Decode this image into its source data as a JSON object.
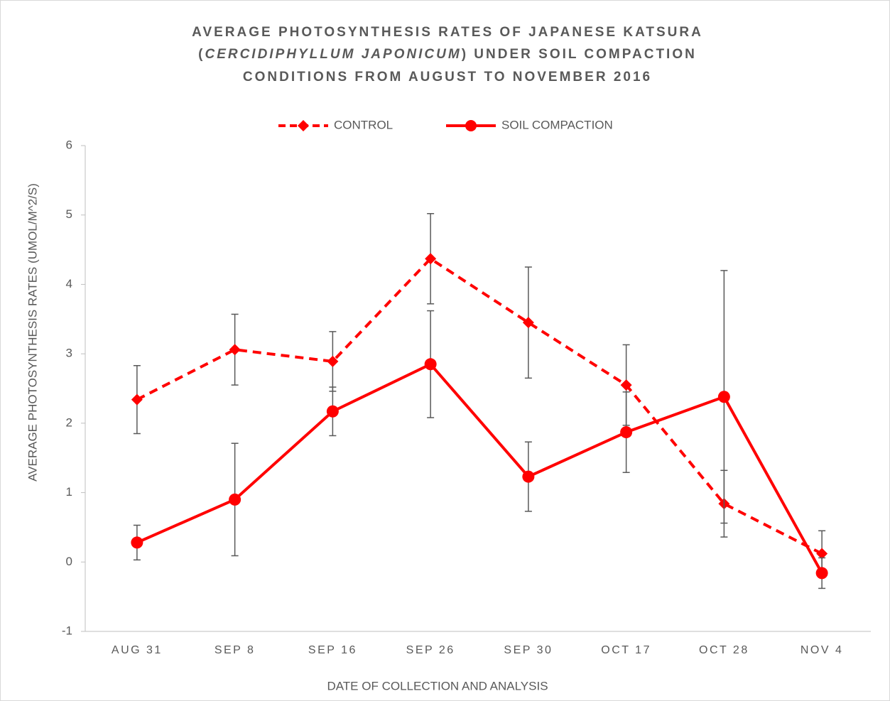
{
  "chart_data": {
    "type": "line",
    "title": [
      "AVERAGE PHOTOSYNTHESIS RATES OF JAPANESE KATSURA",
      "(",
      "CERCIDIPHYLLUM JAPONICUM",
      ") UNDER SOIL COMPACTION",
      "CONDITIONS FROM AUGUST TO NOVEMBER 2016"
    ],
    "x_label": "DATE OF COLLECTION AND ANALYSIS",
    "y_label": "AVERAGE PHOTOSYNTHESIS RATES (UMOL/M^2/S)",
    "categories": [
      "AUG 31",
      "SEP 8",
      "SEP 16",
      "SEP 26",
      "SEP 30",
      "OCT 17",
      "OCT 28",
      "NOV 4"
    ],
    "series": [
      {
        "name": "CONTROL",
        "color": "#ff0000",
        "dashed": true,
        "marker": "diamond",
        "values": [
          2.34,
          3.06,
          2.89,
          4.37,
          3.45,
          2.55,
          0.84,
          0.12
        ],
        "errors": [
          0.49,
          0.51,
          0.43,
          0.65,
          0.8,
          0.58,
          0.48,
          0.33
        ]
      },
      {
        "name": "SOIL COMPACTION",
        "color": "#ff0000",
        "dashed": false,
        "marker": "circle",
        "values": [
          0.28,
          0.9,
          2.17,
          2.85,
          1.23,
          1.87,
          2.38,
          -0.16
        ],
        "errors": [
          0.25,
          0.81,
          0.35,
          0.77,
          0.5,
          0.58,
          1.82,
          0.22
        ]
      }
    ],
    "ylim": [
      -1,
      6
    ],
    "yticks": [
      -1,
      0,
      1,
      2,
      3,
      4,
      5,
      6
    ],
    "grid": false,
    "legend": "top"
  }
}
